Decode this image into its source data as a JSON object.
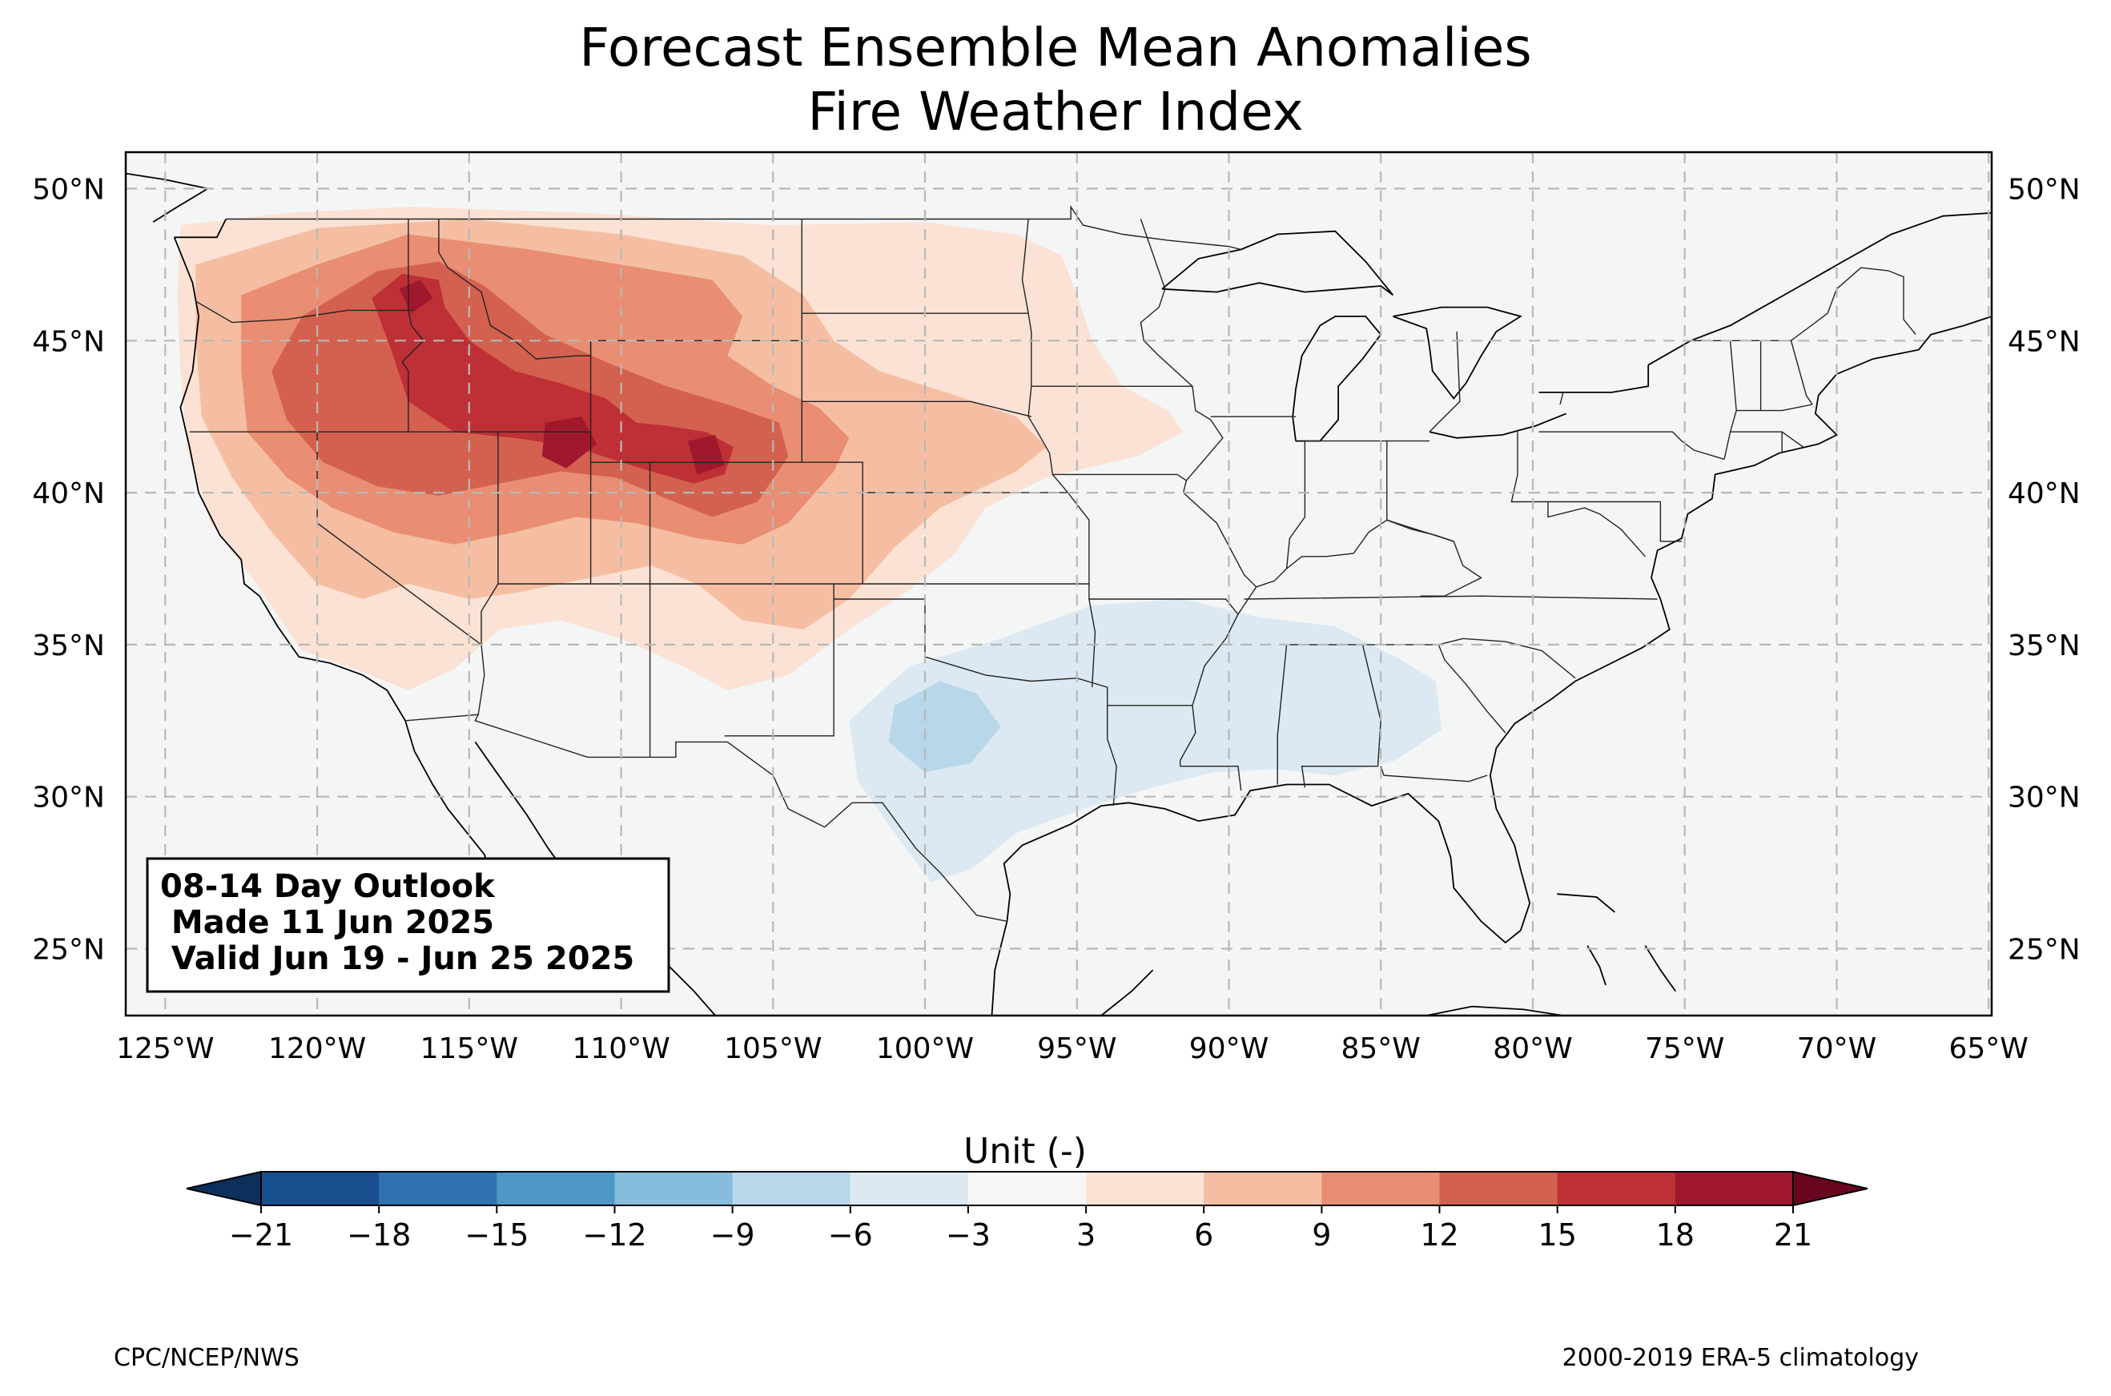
{
  "title": {
    "line1": "Forecast Ensemble Mean Anomalies",
    "line2": "Fire Weather Index"
  },
  "map": {
    "projection": "plate carree",
    "extent": {
      "lon_min": -126.3,
      "lon_max": -64.9,
      "lat_min": 22.8,
      "lat_max": 51.2
    },
    "gridlines": true,
    "ocean_land_fill": "#f4f6f6",
    "lon_ticks": [
      {
        "value": -125,
        "label": "125°W"
      },
      {
        "value": -120,
        "label": "120°W"
      },
      {
        "value": -115,
        "label": "115°W"
      },
      {
        "value": -110,
        "label": "110°W"
      },
      {
        "value": -105,
        "label": "105°W"
      },
      {
        "value": -100,
        "label": "100°W"
      },
      {
        "value": -95,
        "label": "95°W"
      },
      {
        "value": -90,
        "label": "90°W"
      },
      {
        "value": -85,
        "label": "85°W"
      },
      {
        "value": -80,
        "label": "80°W"
      },
      {
        "value": -75,
        "label": "75°W"
      },
      {
        "value": -70,
        "label": "70°W"
      },
      {
        "value": -65,
        "label": "65°W"
      }
    ],
    "lat_ticks": [
      {
        "value": 50,
        "label": "50°N"
      },
      {
        "value": 45,
        "label": "45°N"
      },
      {
        "value": 40,
        "label": "40°N"
      },
      {
        "value": 35,
        "label": "35°N"
      },
      {
        "value": 30,
        "label": "30°N"
      },
      {
        "value": 25,
        "label": "25°N"
      }
    ]
  },
  "info_box": {
    "line1": "08-14 Day Outlook",
    "line2": " Made 11 Jun 2025",
    "line3": " Valid Jun 19 - Jun 25 2025"
  },
  "colorbar": {
    "label": "Unit (-)",
    "levels": [
      -21,
      -18,
      -15,
      -12,
      -9,
      -6,
      -3,
      3,
      6,
      9,
      12,
      15,
      18,
      21
    ],
    "tick_labels": [
      "−21",
      "−18",
      "−15",
      "−12",
      "−9",
      "−6",
      "−3",
      "3",
      "6",
      "9",
      "12",
      "15",
      "18",
      "21"
    ],
    "colors": [
      "#1a4f8f",
      "#2e72b1",
      "#4e98c6",
      "#86bcdc",
      "#b8d7ea",
      "#dde9f2",
      "#f7f7f7",
      "#fbe2d4",
      "#f5bea3",
      "#e98e72",
      "#d4614f",
      "#be3035",
      "#a0182d"
    ],
    "under_color": "#0c2f5c",
    "over_color": "#6a0520",
    "extend": "both"
  },
  "anomaly_regions": [
    {
      "level": 3,
      "color": "#fbe2d4",
      "polygon": [
        [
          -124.5,
          48.8
        ],
        [
          -121,
          49.2
        ],
        [
          -117,
          49.4
        ],
        [
          -111,
          49.2
        ],
        [
          -105,
          48.8
        ],
        [
          -100,
          48.9
        ],
        [
          -97,
          48.5
        ],
        [
          -95.5,
          47.8
        ],
        [
          -95,
          46.5
        ],
        [
          -94.5,
          45
        ],
        [
          -93.5,
          43.5
        ],
        [
          -92,
          42.7
        ],
        [
          -91.5,
          42
        ],
        [
          -93,
          41.2
        ],
        [
          -96,
          40.5
        ],
        [
          -98,
          39.5
        ],
        [
          -99,
          38
        ],
        [
          -100.5,
          36.8
        ],
        [
          -102.5,
          35.5
        ],
        [
          -104.5,
          34
        ],
        [
          -106.5,
          33.5
        ],
        [
          -108,
          34.3
        ],
        [
          -110,
          35.2
        ],
        [
          -112,
          35.8
        ],
        [
          -114,
          35.5
        ],
        [
          -115.5,
          34.2
        ],
        [
          -117,
          33.5
        ],
        [
          -118.5,
          34.1
        ],
        [
          -120.5,
          34.8
        ],
        [
          -122,
          37
        ],
        [
          -123.5,
          39
        ],
        [
          -124.3,
          41.5
        ],
        [
          -124.5,
          44
        ],
        [
          -124.6,
          46.5
        ]
      ]
    },
    {
      "level": 6,
      "color": "#f5bea3",
      "polygon": [
        [
          -124,
          47.5
        ],
        [
          -120,
          48.7
        ],
        [
          -115,
          49
        ],
        [
          -110,
          48.5
        ],
        [
          -106,
          47.8
        ],
        [
          -104,
          46.5
        ],
        [
          -103,
          45
        ],
        [
          -101.5,
          44
        ],
        [
          -99,
          43.2
        ],
        [
          -97,
          42.5
        ],
        [
          -96,
          41.5
        ],
        [
          -97,
          40.7
        ],
        [
          -99.5,
          39.5
        ],
        [
          -101,
          38.2
        ],
        [
          -102.5,
          36.5
        ],
        [
          -104,
          35.5
        ],
        [
          -106,
          35.8
        ],
        [
          -107.5,
          37
        ],
        [
          -109,
          37.6
        ],
        [
          -110.5,
          37.3
        ],
        [
          -112,
          37
        ],
        [
          -113.5,
          36.7
        ],
        [
          -115,
          36.5
        ],
        [
          -117,
          37
        ],
        [
          -118.5,
          36.5
        ],
        [
          -120,
          37
        ],
        [
          -121.5,
          38.7
        ],
        [
          -122.8,
          40.5
        ],
        [
          -123.8,
          42.5
        ],
        [
          -124,
          45
        ]
      ]
    },
    {
      "level": 9,
      "color": "#e98e72",
      "polygon": [
        [
          -122.5,
          46.5
        ],
        [
          -120,
          47.5
        ],
        [
          -117,
          48.5
        ],
        [
          -113,
          48
        ],
        [
          -110,
          47.5
        ],
        [
          -107,
          47
        ],
        [
          -106,
          45.8
        ],
        [
          -106.5,
          44.5
        ],
        [
          -105,
          43.5
        ],
        [
          -103.5,
          42.8
        ],
        [
          -102.5,
          41.8
        ],
        [
          -103,
          40.7
        ],
        [
          -104.5,
          39
        ],
        [
          -106,
          38.3
        ],
        [
          -107.5,
          38.5
        ],
        [
          -109.5,
          39
        ],
        [
          -111.5,
          39.2
        ],
        [
          -113.5,
          38.7
        ],
        [
          -115.5,
          38.3
        ],
        [
          -117.5,
          38.7
        ],
        [
          -119.5,
          39.5
        ],
        [
          -121,
          40.5
        ],
        [
          -122.3,
          42
        ],
        [
          -122.5,
          44
        ]
      ]
    },
    {
      "level": 12,
      "color": "#d4614f",
      "polygon": [
        [
          -120.5,
          45.8
        ],
        [
          -118,
          47.3
        ],
        [
          -116,
          47.6
        ],
        [
          -114.5,
          46.8
        ],
        [
          -112.5,
          45.2
        ],
        [
          -110.5,
          44.3
        ],
        [
          -108.5,
          43.5
        ],
        [
          -106.5,
          42.9
        ],
        [
          -104.8,
          42.3
        ],
        [
          -104.5,
          41.2
        ],
        [
          -105.5,
          39.7
        ],
        [
          -107,
          39.2
        ],
        [
          -108.5,
          39.8
        ],
        [
          -110.2,
          40.5
        ],
        [
          -112,
          40.7
        ],
        [
          -114,
          40.3
        ],
        [
          -116,
          39.9
        ],
        [
          -118,
          40.2
        ],
        [
          -119.8,
          41
        ],
        [
          -121,
          42.4
        ],
        [
          -121.5,
          44
        ]
      ]
    },
    {
      "level": 15,
      "color": "#be3035",
      "polygon": [
        [
          -118.2,
          46.4
        ],
        [
          -117.2,
          47.2
        ],
        [
          -116,
          47
        ],
        [
          -115.8,
          46.1
        ],
        [
          -115,
          45
        ],
        [
          -113.5,
          44
        ],
        [
          -112,
          43.6
        ],
        [
          -110.5,
          43.1
        ],
        [
          -109.5,
          42.3
        ],
        [
          -108.5,
          42.2
        ],
        [
          -107.2,
          42
        ],
        [
          -106.3,
          41.5
        ],
        [
          -106.6,
          40.6
        ],
        [
          -107.6,
          40.3
        ],
        [
          -109,
          40.7
        ],
        [
          -110.3,
          41.1
        ],
        [
          -111.5,
          41.5
        ],
        [
          -113.5,
          41.8
        ],
        [
          -115.5,
          42
        ],
        [
          -117,
          43
        ],
        [
          -117.6,
          44.8
        ]
      ]
    },
    {
      "level": 18,
      "color": "#a0182d",
      "polygon": [
        [
          -117.3,
          46.7
        ],
        [
          -116.6,
          47
        ],
        [
          -116.2,
          46.4
        ],
        [
          -116.9,
          45.9
        ]
      ]
    },
    {
      "level": 18,
      "color": "#a0182d",
      "polygon": [
        [
          -112.5,
          42.3
        ],
        [
          -111.3,
          42.5
        ],
        [
          -110.8,
          41.6
        ],
        [
          -111.8,
          40.8
        ],
        [
          -112.6,
          41.2
        ]
      ]
    },
    {
      "level": 18,
      "color": "#a0182d",
      "polygon": [
        [
          -107.8,
          41.7
        ],
        [
          -106.9,
          41.9
        ],
        [
          -106.6,
          40.9
        ],
        [
          -107.5,
          40.6
        ]
      ]
    },
    {
      "level": -3,
      "color": "#dde9f2",
      "polygon": [
        [
          -102.5,
          32.5
        ],
        [
          -100.5,
          34.3
        ],
        [
          -97.5,
          35.2
        ],
        [
          -94.5,
          36.3
        ],
        [
          -91.5,
          36.5
        ],
        [
          -89,
          35.9
        ],
        [
          -86.5,
          35.6
        ],
        [
          -84.5,
          34.6
        ],
        [
          -83.2,
          33.8
        ],
        [
          -83,
          32.2
        ],
        [
          -84.5,
          31.2
        ],
        [
          -86.5,
          30.7
        ],
        [
          -88.5,
          30.9
        ],
        [
          -90.5,
          30.8
        ],
        [
          -92.5,
          30.3
        ],
        [
          -94.5,
          29.7
        ],
        [
          -97,
          28.8
        ],
        [
          -98.5,
          27.6
        ],
        [
          -99.8,
          27.2
        ],
        [
          -101,
          28.8
        ],
        [
          -102.2,
          30.5
        ]
      ]
    },
    {
      "level": -6,
      "color": "#b8d7ea",
      "polygon": [
        [
          -101,
          33
        ],
        [
          -99.5,
          33.8
        ],
        [
          -98.3,
          33.4
        ],
        [
          -97.5,
          32.3
        ],
        [
          -98.5,
          31.1
        ],
        [
          -100,
          30.8
        ],
        [
          -101.2,
          31.8
        ]
      ]
    }
  ],
  "credits": {
    "left": "CPC/NCEP/NWS",
    "right": "2000-2019 ERA-5 climatology"
  }
}
